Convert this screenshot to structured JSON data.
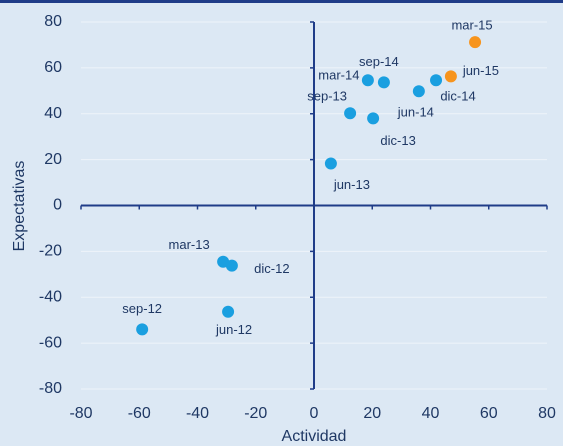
{
  "chart_data": {
    "type": "scatter",
    "x_label": "Actividad",
    "y_label": "Expectativas",
    "xlim": [
      -80,
      80
    ],
    "xticks": [
      -80,
      -60,
      -40,
      -20,
      0,
      20,
      40,
      60,
      80
    ],
    "ylim": [
      -80,
      80
    ],
    "yticks": [
      -80,
      -60,
      -40,
      -20,
      0,
      20,
      40,
      60,
      80
    ],
    "grid": true,
    "series": [
      {
        "color": "#1a9fe0",
        "labels": [
          "sep-12",
          "jun-12",
          "mar-13",
          "dic-12",
          "jun-13",
          "sep-13",
          "dic-13",
          "mar-14",
          "sep-14",
          "jun-14",
          "dic-14"
        ],
        "x": [
          -59,
          -29.5,
          -31.2,
          -28.2,
          5.8,
          12.4,
          20.3,
          18.5,
          24,
          36,
          41.9
        ],
        "values": [
          -54,
          -46.3,
          -24.5,
          -26.2,
          18.3,
          40.2,
          38,
          54.6,
          53.7,
          49.8,
          54.6
        ]
      },
      {
        "color": "#f7941d",
        "labels": [
          "jun-15",
          "mar-15"
        ],
        "x": [
          47,
          55.3
        ],
        "values": [
          56.3,
          71.2
        ]
      }
    ]
  }
}
